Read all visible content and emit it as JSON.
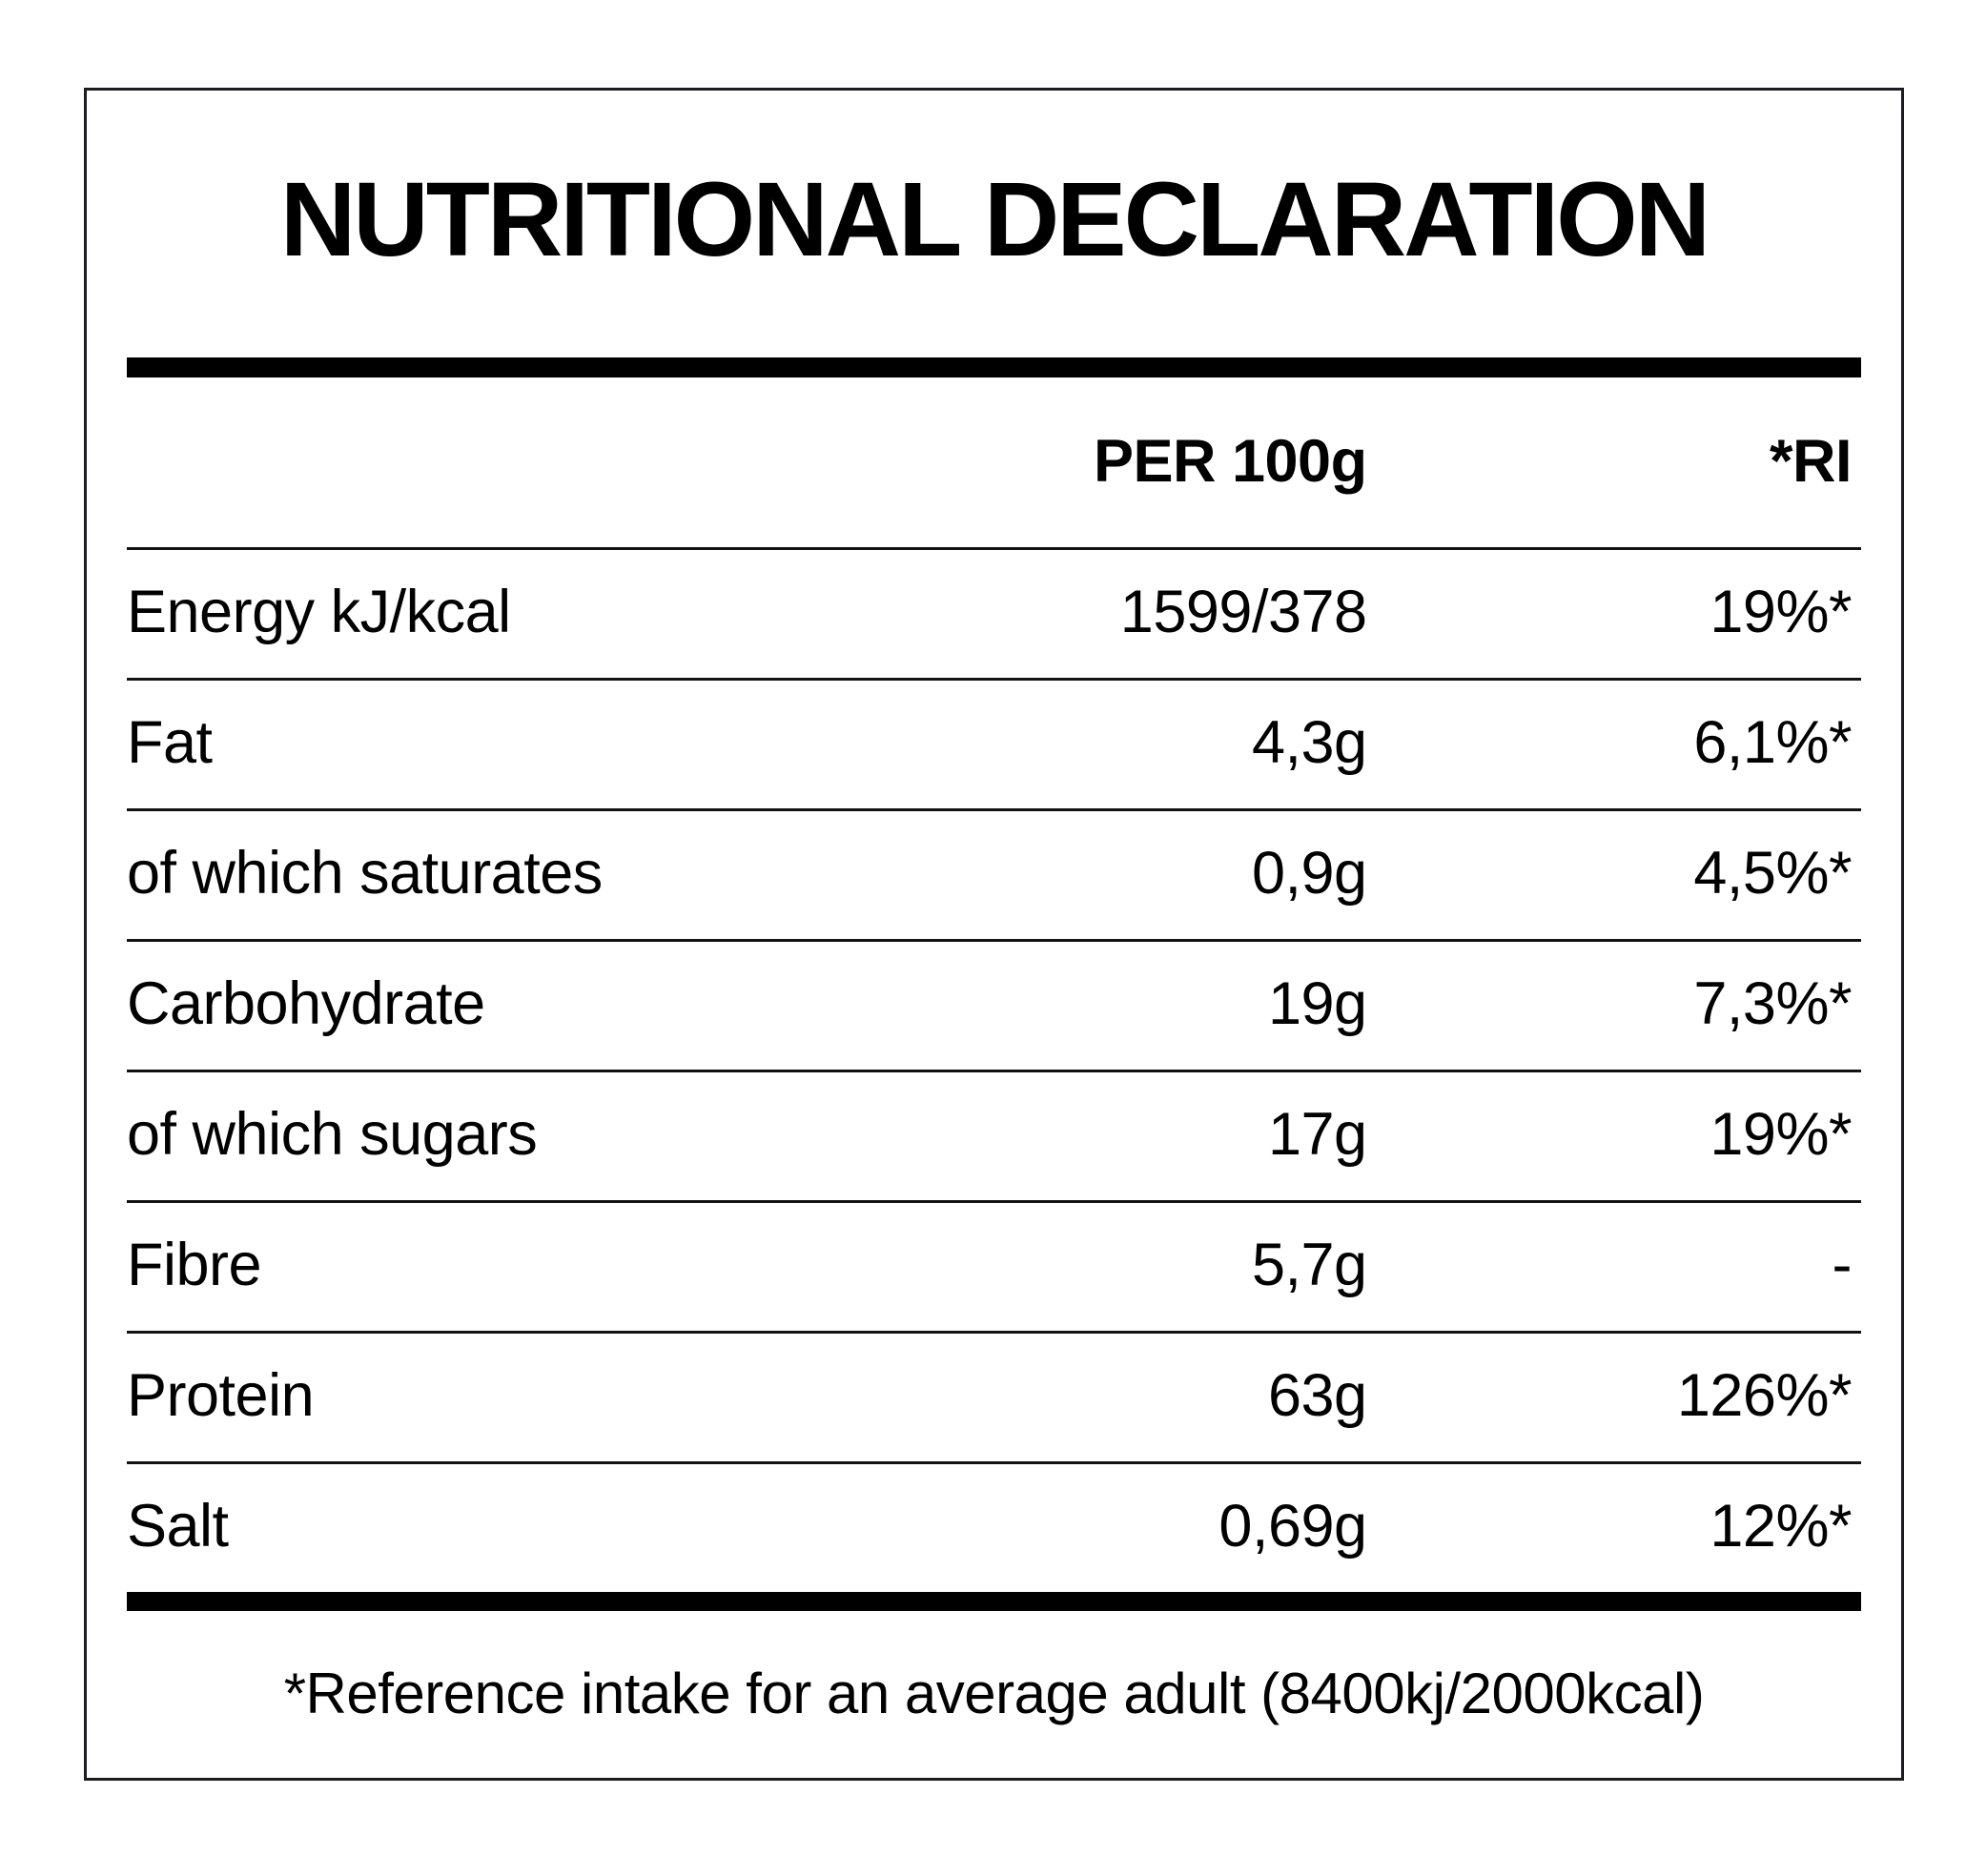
{
  "label": {
    "title": "NUTRITIONAL DECLARATION",
    "footnote": "*Reference intake for an average adult (8400kj/2000kcal)"
  },
  "table": {
    "columns": {
      "nutrient": "",
      "per_100g": "PER 100g",
      "ri": "*RI"
    },
    "rows": [
      {
        "label": "Energy kJ/kcal",
        "per_100g": "1599/378",
        "ri": "19%*"
      },
      {
        "label": "Fat",
        "per_100g": "4,3g",
        "ri": "6,1%*"
      },
      {
        "label": "of which saturates",
        "per_100g": "0,9g",
        "ri": "4,5%*"
      },
      {
        "label": "Carbohydrate",
        "per_100g": "19g",
        "ri": "7,3%*"
      },
      {
        "label": "of which sugars",
        "per_100g": "17g",
        "ri": "19%*"
      },
      {
        "label": "Fibre",
        "per_100g": "5,7g",
        "ri": "-"
      },
      {
        "label": "Protein",
        "per_100g": "63g",
        "ri": "126%*"
      },
      {
        "label": "Salt",
        "per_100g": "0,69g",
        "ri": "12%*"
      }
    ]
  },
  "colors": {
    "text": "#000000",
    "background": "#ffffff",
    "border": "#1c1c24",
    "rule": "#121212"
  }
}
